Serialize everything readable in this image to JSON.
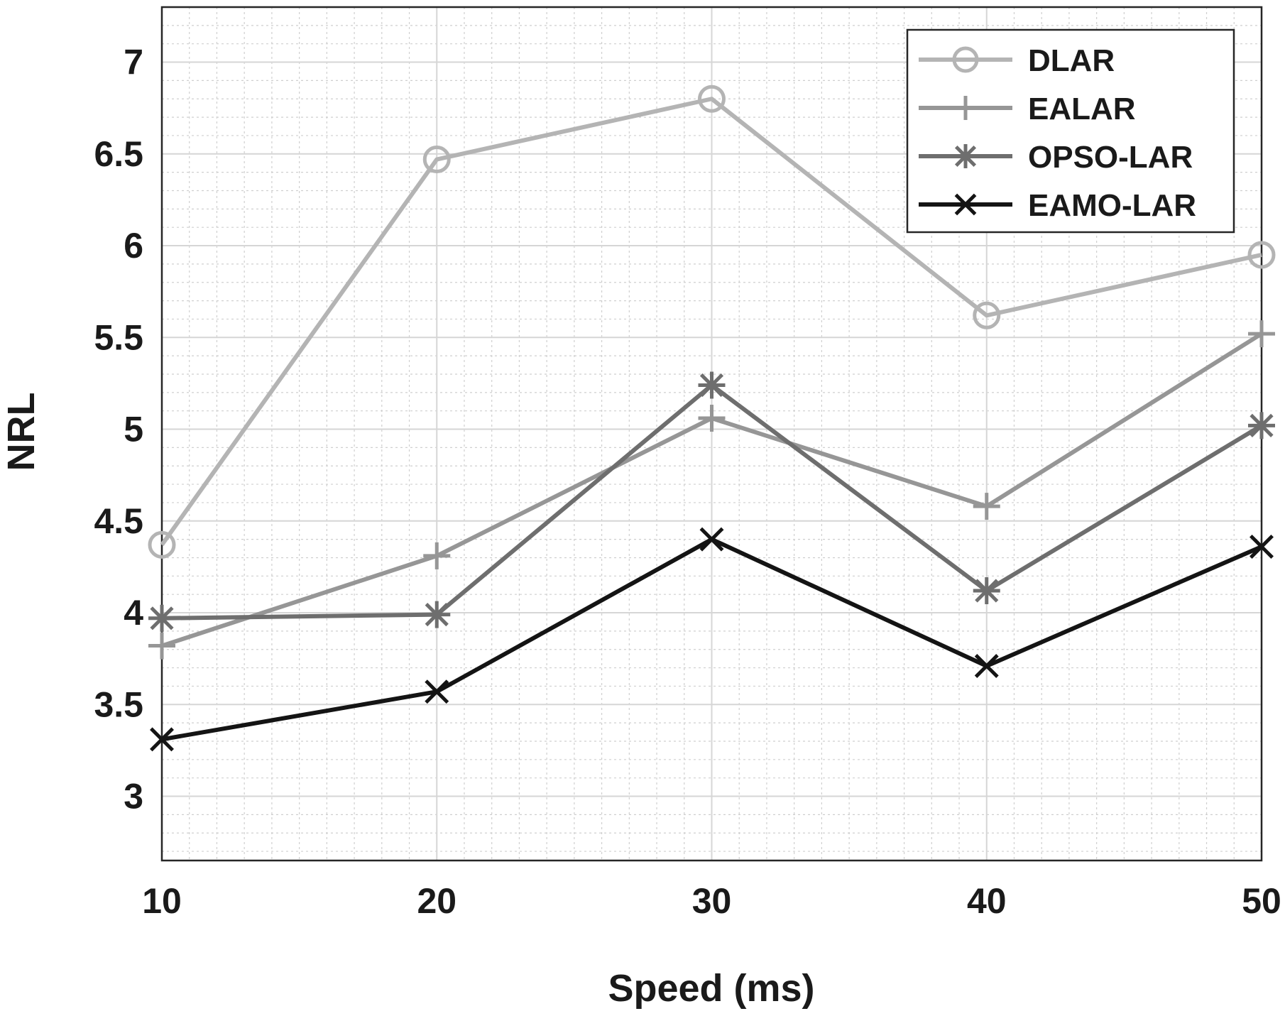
{
  "chart_data": {
    "type": "line",
    "title": "",
    "xlabel": "Speed (ms)",
    "ylabel": "NRL",
    "x": [
      10,
      20,
      30,
      40,
      50
    ],
    "xlim": [
      10,
      50
    ],
    "ylim": [
      2.65,
      7.3
    ],
    "xticks": [
      "10",
      "20",
      "30",
      "40",
      "50"
    ],
    "yticks": [
      "3",
      "3.5",
      "4",
      "4.5",
      "5",
      "5.5",
      "6",
      "6.5",
      "7"
    ],
    "ytick_values": [
      3,
      3.5,
      4,
      4.5,
      5,
      5.5,
      6,
      6.5,
      7
    ],
    "grid": true,
    "minor_grid": true,
    "legend_position": "top-right",
    "series": [
      {
        "name": "DLAR",
        "values": [
          4.37,
          6.47,
          6.8,
          5.62,
          5.95
        ],
        "color": "#b4b4b4",
        "marker": "circle"
      },
      {
        "name": "EALAR",
        "values": [
          3.82,
          4.31,
          5.06,
          4.58,
          5.52
        ],
        "color": "#969696",
        "marker": "plus"
      },
      {
        "name": "OPSO-LAR",
        "values": [
          3.97,
          3.99,
          5.24,
          4.12,
          5.02
        ],
        "color": "#6e6e6e",
        "marker": "asterisk"
      },
      {
        "name": "EAMO-LAR",
        "values": [
          3.31,
          3.57,
          4.4,
          3.71,
          4.36
        ],
        "color": "#141414",
        "marker": "x"
      }
    ]
  }
}
